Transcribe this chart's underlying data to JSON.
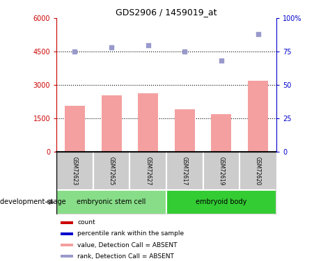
{
  "title": "GDS2906 / 1459019_at",
  "samples": [
    "GSM72623",
    "GSM72625",
    "GSM72627",
    "GSM72617",
    "GSM72619",
    "GSM72620"
  ],
  "bar_values": [
    2050,
    2530,
    2620,
    1900,
    1680,
    3200
  ],
  "rank_values": [
    75,
    78,
    80,
    75,
    68,
    88
  ],
  "bar_color": "#f4a0a0",
  "rank_color": "#9999cc",
  "left_ylim": [
    0,
    6000
  ],
  "right_ylim": [
    0,
    100
  ],
  "left_yticks": [
    0,
    1500,
    3000,
    4500,
    6000
  ],
  "right_yticks": [
    0,
    25,
    50,
    75,
    100
  ],
  "right_yticklabels": [
    "0",
    "25",
    "50",
    "75",
    "100%"
  ],
  "left_ytick_color": "#cc0000",
  "right_ytick_color": "#0000cc",
  "hline_values": [
    1500,
    3000,
    4500
  ],
  "groups": [
    {
      "label": "embryonic stem cell",
      "indices": [
        0,
        1,
        2
      ],
      "color": "#88dd88"
    },
    {
      "label": "embryoid body",
      "indices": [
        3,
        4,
        5
      ],
      "color": "#33cc33"
    }
  ],
  "group_label": "development stage",
  "legend_items": [
    {
      "label": "count",
      "color": "#cc0000"
    },
    {
      "label": "percentile rank within the sample",
      "color": "#0000cc"
    },
    {
      "label": "value, Detection Call = ABSENT",
      "color": "#f4a0a0"
    },
    {
      "label": "rank, Detection Call = ABSENT",
      "color": "#9999cc"
    }
  ],
  "bar_width": 0.55,
  "x_positions": [
    0,
    1,
    2,
    3,
    4,
    5
  ],
  "tick_label_fontsize": 7,
  "title_fontsize": 9,
  "label_fontsize": 7,
  "grid_linestyle": "dotted",
  "grid_linewidth": 0.8,
  "sample_box_color": "#cccccc",
  "sample_box_edge": "#888888"
}
